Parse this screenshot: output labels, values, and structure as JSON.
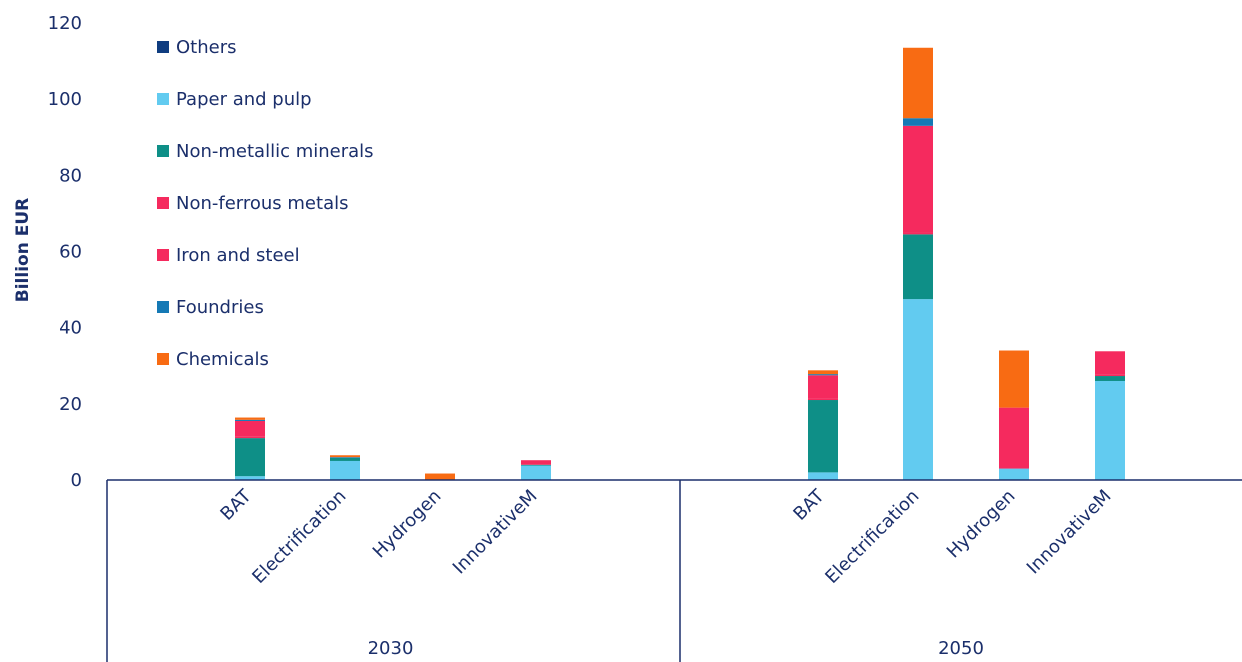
{
  "chart_data": {
    "type": "bar",
    "stacked": true,
    "ylabel": "Billion EUR",
    "ylim": [
      0,
      120
    ],
    "yticks": [
      0,
      20,
      40,
      60,
      80,
      100,
      120
    ],
    "grid": false,
    "legend_position": "top-left",
    "groups": [
      {
        "label": "2030",
        "categories": [
          "BAT",
          "Electrification",
          "Hydrogen",
          "InnovativeM"
        ]
      },
      {
        "label": "2050",
        "categories": [
          "BAT",
          "Electrification",
          "Hydrogen",
          "InnovativeM"
        ]
      }
    ],
    "series": [
      {
        "name": "Paper and pulp",
        "color": "#62cbf0",
        "values": [
          1,
          5,
          0,
          3.8,
          2,
          47.5,
          3,
          26
        ]
      },
      {
        "name": "Non-metallic minerals",
        "color": "#0e8f87",
        "values": [
          10,
          0.8,
          0,
          0.2,
          19,
          17,
          0,
          1.3
        ]
      },
      {
        "name": "Iron and steel",
        "color": "#f52a5e",
        "values": [
          0.5,
          0,
          0,
          0.2,
          0.5,
          0.5,
          0,
          0.5
        ]
      },
      {
        "name": "Non-ferrous metals",
        "color": "#f52a5e",
        "values": [
          4,
          0,
          0,
          1,
          6,
          28,
          16,
          6
        ]
      },
      {
        "name": "Foundries",
        "color": "#1579b5",
        "values": [
          0.3,
          0.2,
          0,
          0,
          0.3,
          2,
          0,
          0
        ]
      },
      {
        "name": "Chemicals",
        "color": "#f86b13",
        "values": [
          0.6,
          0.5,
          1.7,
          0,
          1,
          18.5,
          15,
          0
        ]
      },
      {
        "name": "Others",
        "color": "#0f3d80",
        "values": [
          0,
          0,
          0,
          0,
          0,
          0,
          0,
          0
        ]
      }
    ],
    "legend": [
      {
        "name": "Others",
        "color": "#0f3d80"
      },
      {
        "name": "Paper and pulp",
        "color": "#62cbf0"
      },
      {
        "name": "Non-metallic minerals",
        "color": "#0e8f87"
      },
      {
        "name": "Non-ferrous metals",
        "color": "#f52a5e"
      },
      {
        "name": "Iron and steel",
        "color": "#f52a5e"
      },
      {
        "name": "Foundries",
        "color": "#1579b5"
      },
      {
        "name": "Chemicals",
        "color": "#f86b13"
      }
    ]
  }
}
